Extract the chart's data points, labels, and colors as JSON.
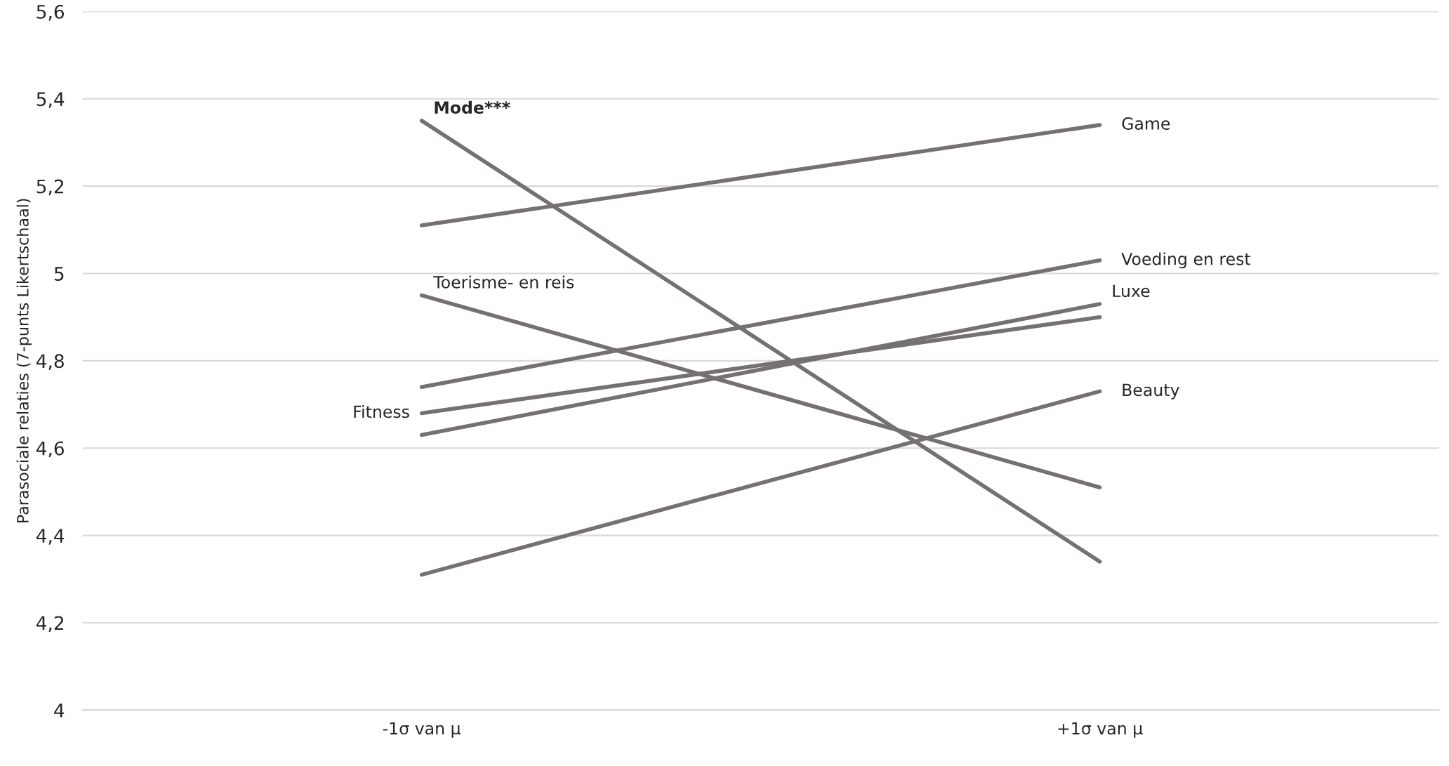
{
  "chart_data": {
    "type": "line",
    "ylabel": "Parasociale relaties (7-punts Likertschaal)",
    "categories": [
      "-1σ van μ",
      "+1σ van μ"
    ],
    "series": [
      {
        "name": "Mode***",
        "color": "#767171",
        "values": [
          5.35,
          4.34
        ]
      },
      {
        "name": "Game",
        "color": "#767171",
        "values": [
          5.11,
          5.34
        ]
      },
      {
        "name": "Toerisme- en reis",
        "color": "#767171",
        "values": [
          4.95,
          4.51
        ]
      },
      {
        "name": "Voeding en rest",
        "color": "#767171",
        "values": [
          4.74,
          5.03
        ]
      },
      {
        "name": "Fitness",
        "color": "#767171",
        "values": [
          4.68,
          4.9
        ]
      },
      {
        "name": "Luxe",
        "color": "#767171",
        "values": [
          4.63,
          4.93
        ]
      },
      {
        "name": "Beauty",
        "color": "#767171",
        "values": [
          4.31,
          4.73
        ]
      }
    ],
    "ylim": [
      4,
      5.6
    ],
    "yticks": [
      {
        "value": 4,
        "label": "4"
      },
      {
        "value": 4.2,
        "label": "4,2"
      },
      {
        "value": 4.4,
        "label": "4,4"
      },
      {
        "value": 4.6,
        "label": "4,6"
      },
      {
        "value": 4.8,
        "label": "4,8"
      },
      {
        "value": 5,
        "label": "5"
      },
      {
        "value": 5.2,
        "label": "5,2"
      },
      {
        "value": 5.4,
        "label": "5,4"
      },
      {
        "value": 5.6,
        "label": "5,6"
      }
    ],
    "grid": "y",
    "legend": false,
    "marker": "none",
    "line_style": "solid"
  }
}
